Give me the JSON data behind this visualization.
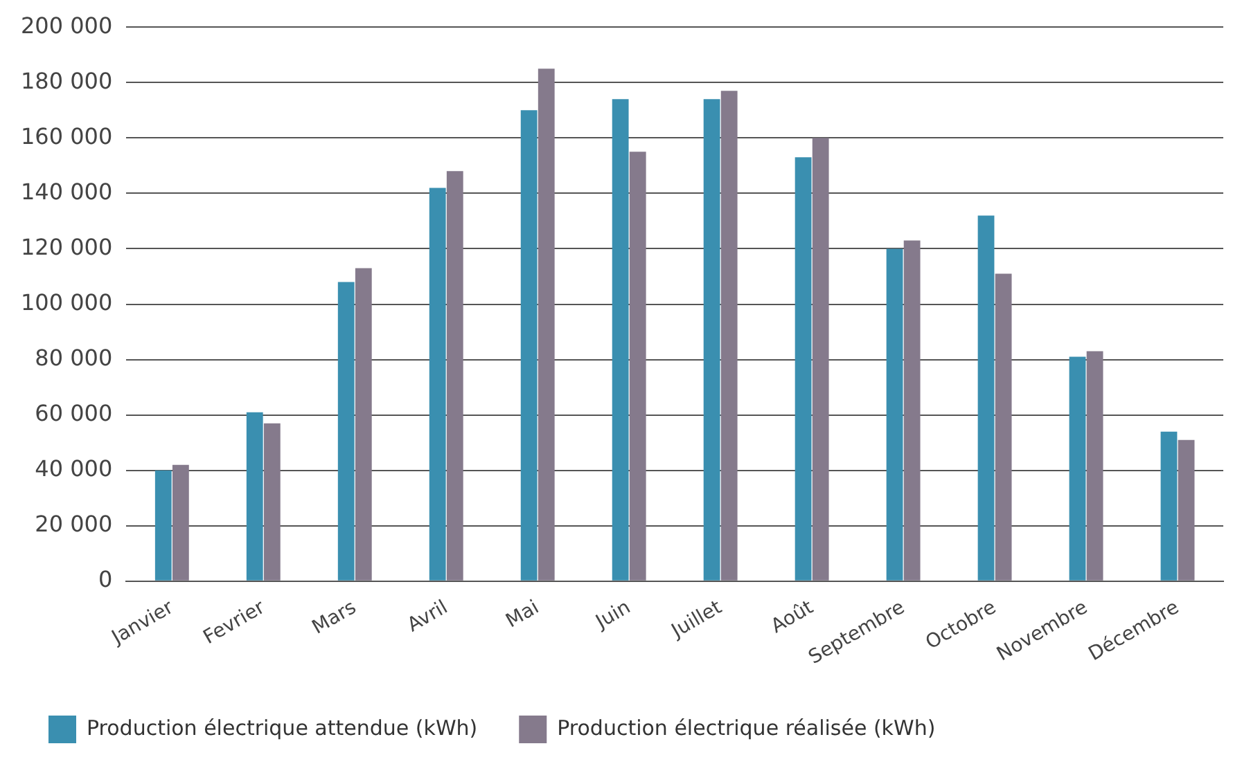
{
  "chart_data": {
    "type": "bar",
    "categories": [
      "Janvier",
      "Fevrier",
      "Mars",
      "Avril",
      "Mai",
      "Juin",
      "Juillet",
      "Août",
      "Septembre",
      "Octobre",
      "Novembre",
      "Décembre"
    ],
    "series": [
      {
        "name": "Production électrique attendue (kWh)",
        "color": "#3a8fb0",
        "values": [
          40000,
          61000,
          108000,
          142000,
          170000,
          174000,
          174000,
          153000,
          120000,
          132000,
          81000,
          54000
        ]
      },
      {
        "name": "Production électrique réalisée (kWh)",
        "color": "#857a8c",
        "values": [
          42000,
          57000,
          113000,
          148000,
          185000,
          155000,
          177000,
          160000,
          123000,
          111000,
          83000,
          51000
        ]
      }
    ],
    "ylim": [
      0,
      200000
    ],
    "yticks": [
      0,
      {
        "value": 20000,
        "label": "20 000"
      },
      {
        "value": 40000,
        "label": "40 000"
      },
      {
        "value": 60000,
        "label": "60 000"
      },
      {
        "value": 80000,
        "label": "80 000"
      },
      {
        "value": 100000,
        "label": "100 000"
      },
      {
        "value": 120000,
        "label": "120 000"
      },
      {
        "value": 140000,
        "label": "140 000"
      },
      {
        "value": 160000,
        "label": "160 000"
      },
      {
        "value": 180000,
        "label": "180 000"
      },
      {
        "value": 200000,
        "label": "200 000"
      }
    ],
    "grid": "y",
    "legend": "bottom"
  }
}
